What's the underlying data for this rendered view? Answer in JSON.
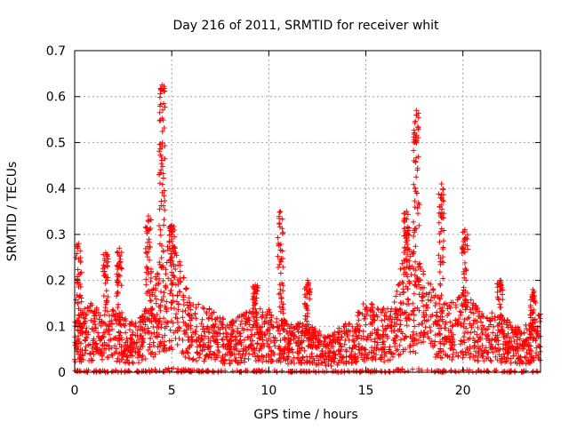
{
  "chart_data": {
    "type": "scatter",
    "title": "Day 216 of 2011, SRMTID for receiver whit",
    "xlabel": "GPS time / hours",
    "ylabel": "SRMTID / TECUs",
    "xlim": [
      0,
      24
    ],
    "ylim": [
      0,
      0.7
    ],
    "x_ticks": [
      0,
      5,
      10,
      15,
      20
    ],
    "x_tick_labels": [
      "0",
      "5",
      "10",
      "15",
      "20"
    ],
    "y_ticks": [
      0,
      0.1,
      0.2,
      0.3,
      0.4,
      0.5,
      0.6,
      0.7
    ],
    "y_tick_labels": [
      "0",
      "0.1",
      "0.2",
      "0.3",
      "0.4",
      "0.5",
      "0.6",
      "0.7"
    ],
    "grid": true,
    "marker": "+",
    "marker_color": "#ff0000",
    "baseline_envelope": {
      "x": [
        0,
        0.5,
        1,
        1.5,
        2,
        2.5,
        3,
        3.5,
        4,
        4.5,
        5,
        5.5,
        6,
        7,
        8,
        9,
        10,
        11,
        12,
        13,
        14,
        15,
        16,
        16.5,
        17,
        17.5,
        18,
        18.5,
        19,
        19.5,
        20,
        21,
        22,
        23,
        24
      ],
      "y": [
        0.08,
        0.09,
        0.1,
        0.07,
        0.09,
        0.08,
        0.07,
        0.08,
        0.12,
        0.17,
        0.19,
        0.15,
        0.1,
        0.09,
        0.07,
        0.09,
        0.09,
        0.07,
        0.07,
        0.05,
        0.07,
        0.1,
        0.09,
        0.1,
        0.18,
        0.17,
        0.14,
        0.12,
        0.1,
        0.1,
        0.11,
        0.09,
        0.08,
        0.06,
        0.09
      ]
    },
    "peaks": [
      {
        "x": 0.2,
        "y": 0.28
      },
      {
        "x": 1.6,
        "y": 0.26
      },
      {
        "x": 2.3,
        "y": 0.27
      },
      {
        "x": 3.8,
        "y": 0.34
      },
      {
        "x": 4.5,
        "y": 0.625
      },
      {
        "x": 5.0,
        "y": 0.32
      },
      {
        "x": 9.3,
        "y": 0.19
      },
      {
        "x": 10.6,
        "y": 0.35
      },
      {
        "x": 12.0,
        "y": 0.2
      },
      {
        "x": 17.1,
        "y": 0.35
      },
      {
        "x": 17.6,
        "y": 0.57
      },
      {
        "x": 18.9,
        "y": 0.41
      },
      {
        "x": 20.1,
        "y": 0.31
      },
      {
        "x": 21.9,
        "y": 0.2
      },
      {
        "x": 23.6,
        "y": 0.18
      }
    ]
  }
}
